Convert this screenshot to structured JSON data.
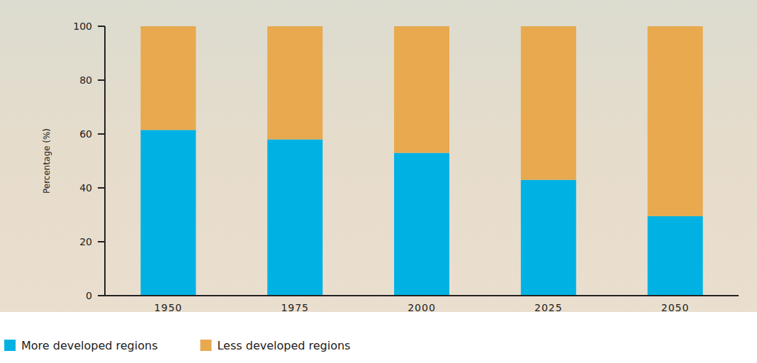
{
  "chart_data": {
    "type": "bar",
    "stacked": true,
    "y_label": "Percentage (%)",
    "categories": [
      "1950",
      "1975",
      "2000",
      "2025",
      "2050"
    ],
    "series": [
      {
        "name": "More developed regions",
        "color": "#00b2e3",
        "values": [
          61.5,
          58,
          53,
          43,
          29.5
        ]
      },
      {
        "name": "Less developed regions",
        "color": "#e8a94f",
        "values": [
          38.5,
          42,
          47,
          57,
          70.5
        ]
      }
    ],
    "ylim": [
      0,
      100
    ],
    "yticks": [
      0,
      20,
      40,
      60,
      80,
      100
    ],
    "grid": false,
    "legend": "bottom"
  }
}
